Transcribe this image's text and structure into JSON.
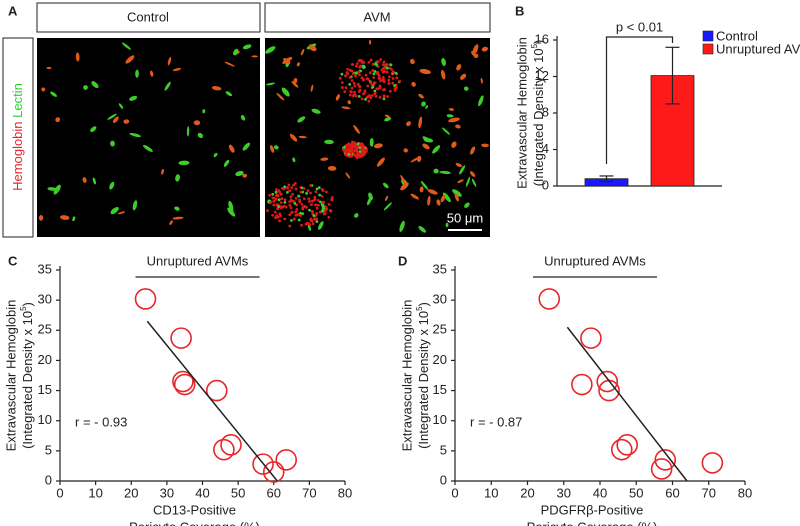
{
  "panel_a": {
    "label": "A",
    "headers": [
      "Control",
      "AVM"
    ],
    "stain_red": "Hemoglobin",
    "stain_green": "Lectin",
    "scale_bar": "50 μm"
  },
  "chart_data": [
    {
      "type": "bar",
      "label": "B",
      "categories": [
        null
      ],
      "series": [
        {
          "name": "Control",
          "color": "#1a1aff",
          "values": [
            0.8
          ],
          "errors": [
            0.3
          ]
        },
        {
          "name": "Unruptured AVM",
          "color": "#ff1a1a",
          "values": [
            12.1
          ],
          "errors": [
            3.1
          ]
        }
      ],
      "ylabel": "Extravascular Hemoglobin",
      "ylabel2": [
        "(Integrated Density x 10",
        "5",
        ")"
      ],
      "ylim": [
        0,
        16
      ],
      "yticks": [
        0,
        4,
        8,
        12,
        16
      ],
      "annotation": "p < 0.01",
      "grid": false
    },
    {
      "type": "scatter",
      "label": "C",
      "title": "Unruptured AVMs",
      "color": "#e8262a",
      "x": [
        24,
        34,
        34.5,
        35,
        44,
        46,
        48,
        57,
        60,
        63.5
      ],
      "y": [
        30.2,
        23.7,
        16.5,
        16,
        15,
        5.2,
        6,
        2.8,
        1.5,
        3.5
      ],
      "fit": {
        "x": [
          24.5,
          61
        ],
        "y": [
          26.5,
          0
        ]
      },
      "annotation": "r = - 0.93",
      "xlabel": [
        "CD13-Positive",
        "Pericyte Coverage (%)"
      ],
      "ylabel": "Extravascular Hemoglobin",
      "ylabel2": [
        "(Integrated Density x 10",
        "5",
        ")"
      ],
      "xlim": [
        0,
        80
      ],
      "xticks": [
        0,
        10,
        20,
        30,
        40,
        50,
        60,
        70,
        80
      ],
      "ylim": [
        0,
        35
      ],
      "yticks": [
        0,
        5,
        10,
        15,
        20,
        25,
        30,
        35
      ],
      "grid": false
    },
    {
      "type": "scatter",
      "label": "D",
      "title": "Unruptured AVMs",
      "color": "#e8262a",
      "x": [
        26,
        37.5,
        35,
        42,
        42.5,
        46,
        47.5,
        57,
        58,
        71
      ],
      "y": [
        30.2,
        23.7,
        16,
        16.5,
        15,
        5.2,
        6,
        2,
        3.5,
        3
      ],
      "fit": {
        "x": [
          31,
          64
        ],
        "y": [
          25.5,
          0
        ]
      },
      "annotation": "r = - 0.87",
      "xlabel": [
        "PDGFRβ-Positive",
        "Pericyte Coverage (%)"
      ],
      "ylabel": "Extravascular Hemoglobin",
      "ylabel2": [
        "(Integrated Density x 10",
        "5",
        ")"
      ],
      "xlim": [
        0,
        80
      ],
      "xticks": [
        0,
        10,
        20,
        30,
        40,
        50,
        60,
        70,
        80
      ],
      "ylim": [
        0,
        35
      ],
      "yticks": [
        0,
        5,
        10,
        15,
        20,
        25,
        30,
        35
      ],
      "grid": false
    }
  ]
}
